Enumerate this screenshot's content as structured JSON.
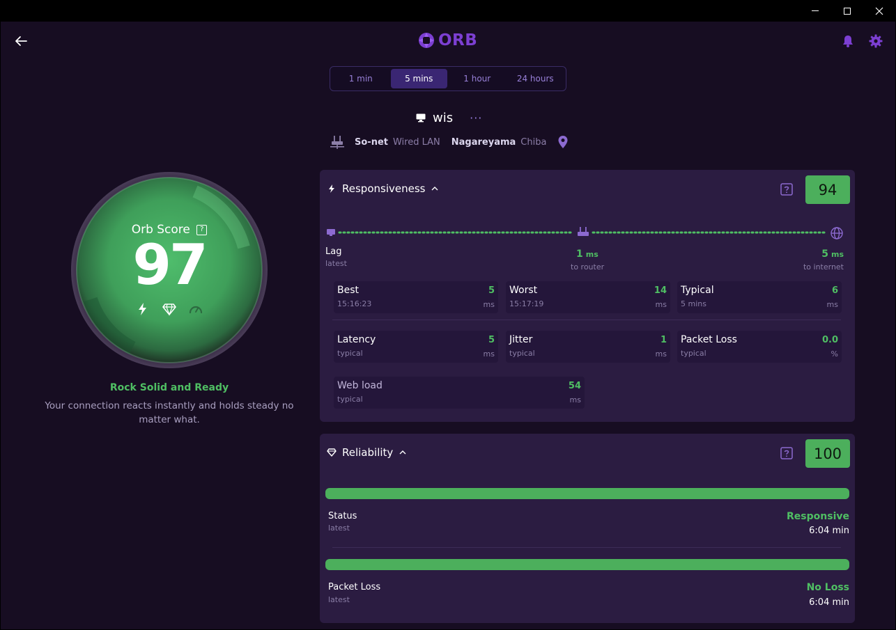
{
  "header": {
    "logo_text": "ORB"
  },
  "time_range": {
    "options": [
      "1 min",
      "5 mins",
      "1 hour",
      "24 hours"
    ],
    "selected": "5 mins"
  },
  "device": {
    "name": "wis",
    "more": "···"
  },
  "network": {
    "isp": "So-net",
    "connection": "Wired LAN",
    "city": "Nagareyama",
    "region": "Chiba"
  },
  "orb": {
    "title": "Orb Score",
    "score": "97",
    "verdict": "Rock Solid and Ready",
    "description": "Your connection reacts instantly and holds steady no matter what.",
    "level": 0.97
  },
  "responsiveness": {
    "title": "Responsiveness",
    "score": "94",
    "lag": {
      "label": "Lag",
      "sub": "latest",
      "router_value": "1",
      "router_unit": "ms",
      "router_label": "to router",
      "internet_value": "5",
      "internet_unit": "ms",
      "internet_label": "to internet"
    },
    "tiles": [
      {
        "name": "Best",
        "sub": "15:16:23",
        "value": "5",
        "unit": "ms"
      },
      {
        "name": "Worst",
        "sub": "15:17:19",
        "value": "14",
        "unit": "ms"
      },
      {
        "name": "Typical",
        "sub": "5 mins",
        "value": "6",
        "unit": "ms"
      },
      {
        "name": "Latency",
        "sub": "typical",
        "value": "5",
        "unit": "ms"
      },
      {
        "name": "Jitter",
        "sub": "typical",
        "value": "1",
        "unit": "ms"
      },
      {
        "name": "Packet Loss",
        "sub": "typical",
        "value": "0.0",
        "unit": "%"
      },
      {
        "name": "Web load",
        "sub": "typical",
        "value": "54",
        "unit": "ms"
      }
    ]
  },
  "reliability": {
    "title": "Reliability",
    "score": "100",
    "rows": [
      {
        "label": "Status",
        "sub": "latest",
        "value": "Responsive",
        "time": "6:04 min",
        "level": 1.0
      },
      {
        "label": "Packet Loss",
        "sub": "latest",
        "value": "No Loss",
        "time": "6:04 min",
        "level": 1.0
      }
    ]
  },
  "colors": {
    "accent": "#7c3fd2",
    "good": "#4caf5c",
    "card": "#2b1c41",
    "background": "#170d22"
  }
}
